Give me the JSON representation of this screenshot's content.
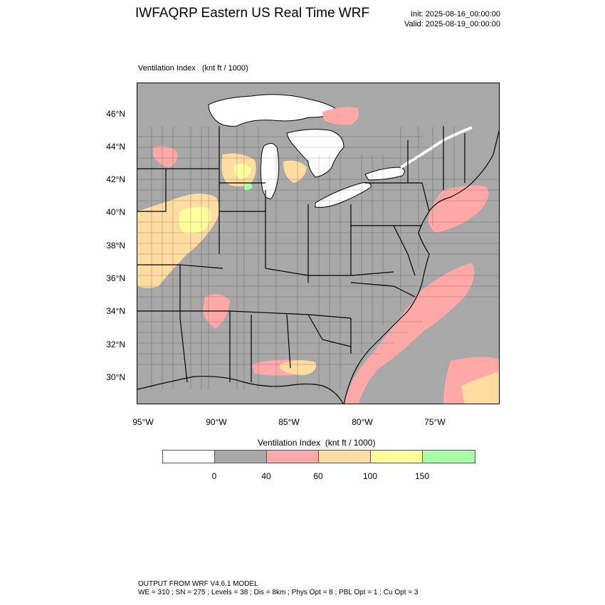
{
  "header": {
    "title": "IWFAQRP Eastern US Real Time WRF",
    "init": "Init: 2025-08-16_00:00:00",
    "valid": "Valid: 2025-08-19_00:00:00"
  },
  "plot": {
    "label": "Ventilation Index   (knt ft / 1000)"
  },
  "map": {
    "lat_ticks": [
      "46°N",
      "44°N",
      "42°N",
      "40°N",
      "38°N",
      "36°N",
      "34°N",
      "32°N",
      "30°N"
    ],
    "lon_ticks": [
      "95°W",
      "90°W",
      "85°W",
      "80°W",
      "75°W"
    ],
    "colors": {
      "land_low": "#a8a8a8",
      "water": "#ffffff",
      "pink": "#ffa8a8",
      "orange": "#ffdca0",
      "yellow": "#ffff9c",
      "green": "#a8ffa8",
      "boundary": "#000000"
    }
  },
  "legend": {
    "title": "Ventilation Index  (knt ft / 1000)",
    "colors": [
      "#ffffff",
      "#a8a8a8",
      "#ffa8a8",
      "#ffdca0",
      "#ffff9c",
      "#a8ffa8"
    ],
    "labels": [
      "0",
      "40",
      "60",
      "100",
      "150"
    ]
  },
  "footer": {
    "line1": "OUTPUT FROM WRF V4.6.1 MODEL",
    "line2": "WE = 310 ; SN = 275 ; Levels = 38 ; Dis = 8km ; Phys Opt = 8 ; PBL Opt = 1 ; Cu Opt = 3"
  }
}
